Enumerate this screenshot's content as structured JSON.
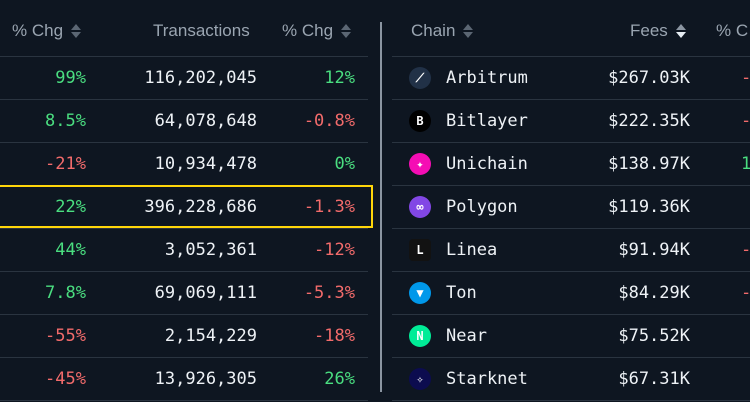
{
  "left_table": {
    "headers": {
      "chg1": "% Chg",
      "transactions": "Transactions",
      "chg2": "% Chg"
    },
    "rows": [
      {
        "chg1": "99%",
        "tx": "116,202,045",
        "chg2": "12%"
      },
      {
        "chg1": "8.5%",
        "tx": "64,078,648",
        "chg2": "-0.8%"
      },
      {
        "chg1": "-21%",
        "tx": "10,934,478",
        "chg2": "0%"
      },
      {
        "chg1": "22%",
        "tx": "396,228,686",
        "chg2": "-1.3%"
      },
      {
        "chg1": "44%",
        "tx": "3,052,361",
        "chg2": "-12%"
      },
      {
        "chg1": "7.8%",
        "tx": "69,069,111",
        "chg2": "-5.3%"
      },
      {
        "chg1": "-55%",
        "tx": "2,154,229",
        "chg2": "-18%"
      },
      {
        "chg1": "-45%",
        "tx": "13,926,305",
        "chg2": "26%"
      }
    ],
    "highlighted_row": 3
  },
  "right_table": {
    "headers": {
      "chain": "Chain",
      "fees": "Fees",
      "chg": "% C"
    },
    "rows": [
      {
        "chain": "Arbitrum",
        "fees": "$267.03K",
        "chg": "-",
        "icon": "arbitrum-icon",
        "color": "#213147"
      },
      {
        "chain": "Bitlayer",
        "fees": "$222.35K",
        "chg": "-",
        "icon": "bitlayer-icon",
        "color": "#000000"
      },
      {
        "chain": "Unichain",
        "fees": "$138.97K",
        "chg": "1",
        "icon": "unichain-icon",
        "color": "#f50db4"
      },
      {
        "chain": "Polygon",
        "fees": "$119.36K",
        "chg": "",
        "icon": "polygon-icon",
        "color": "#8247e5"
      },
      {
        "chain": "Linea",
        "fees": "$91.94K",
        "chg": "-",
        "icon": "linea-icon",
        "color": "#121212"
      },
      {
        "chain": "Ton",
        "fees": "$84.29K",
        "chg": "-",
        "icon": "ton-icon",
        "color": "#0098ea"
      },
      {
        "chain": "Near",
        "fees": "$75.52K",
        "chg": "",
        "icon": "near-icon",
        "color": "#00ec97"
      },
      {
        "chain": "Starknet",
        "fees": "$67.31K",
        "chg": "",
        "icon": "starknet-icon",
        "color": "#0c0c4f"
      }
    ]
  },
  "colors": {
    "positive": "#4ade80",
    "negative": "#f26b6b",
    "highlight": "#ffd60a",
    "background": "#0e1621"
  }
}
